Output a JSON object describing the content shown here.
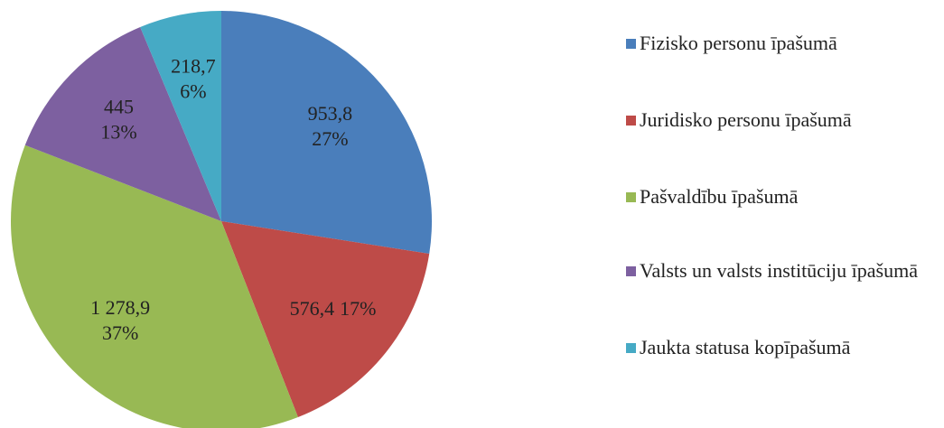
{
  "chart_data": {
    "type": "pie",
    "categories": [
      "Fizisko personu īpašumā",
      "Juridisko personu īpašumā",
      "Pašvaldību īpašumā",
      "Valsts un valsts institūciju īpašumā",
      "Jaukta statusa kopīpašumā"
    ],
    "values": [
      953.8,
      576.4,
      1278.9,
      445,
      218.7
    ],
    "value_labels": [
      "953,8",
      "576,4",
      "1 278,9",
      "445",
      "218,7"
    ],
    "percents": [
      27,
      17,
      37,
      13,
      6
    ],
    "percent_labels": [
      "27%",
      "17%",
      "37%",
      "13%",
      "6%"
    ],
    "colors": [
      "#4a7ebb",
      "#be4b48",
      "#98b954",
      "#7d60a0",
      "#46aac5"
    ],
    "legend": "right"
  }
}
